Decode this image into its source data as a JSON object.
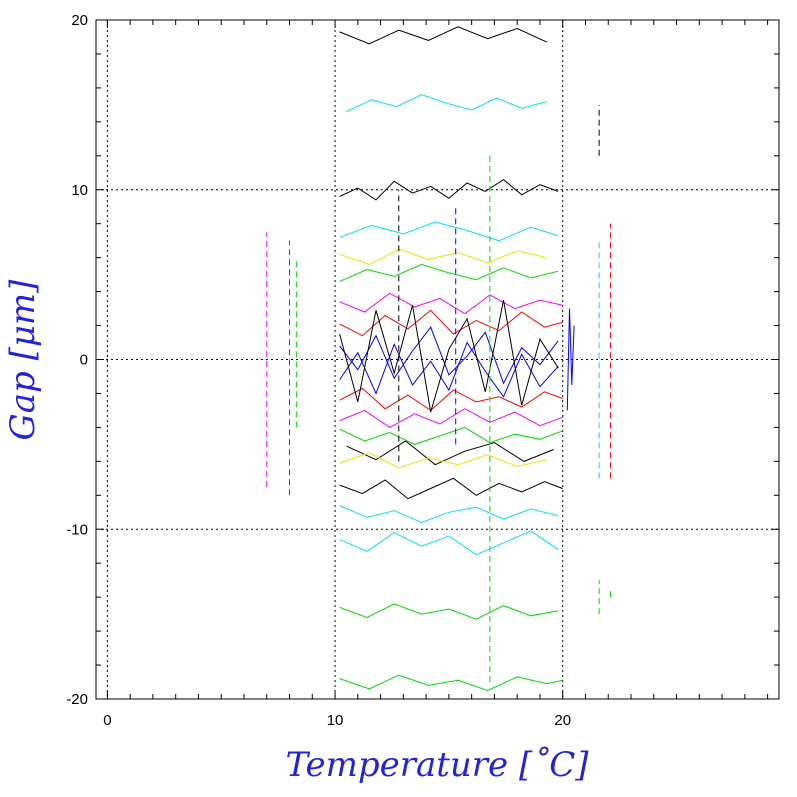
{
  "chart_data": {
    "type": "line",
    "title": "",
    "xlabel": "Temperature [˚C]",
    "ylabel": "Gap [μm]",
    "xlim": [
      -0.5,
      29.5
    ],
    "ylim": [
      -20,
      20
    ],
    "xticks": [
      0,
      10,
      20
    ],
    "yticks": [
      20,
      10,
      0,
      -10,
      -20
    ],
    "grid": "dotted",
    "vertical_reference_lines": [
      0,
      10,
      20
    ],
    "horizontal_reference_lines": [
      10,
      0,
      -10
    ],
    "palette": [
      "#000000",
      "#ff0000",
      "#00dd00",
      "#0000ff",
      "#00e5e5",
      "#ff00ff",
      "#e8e800",
      "#00b000"
    ],
    "series": [
      {
        "color": "#000000",
        "x": [
          10.2,
          11.0,
          11.8,
          12.6,
          13.4,
          14.2,
          15.0,
          15.8,
          16.6,
          17.4,
          18.2,
          19.0,
          19.8
        ],
        "y": [
          9.6,
          10.1,
          9.4,
          10.5,
          9.8,
          10.2,
          9.5,
          10.4,
          9.9,
          10.6,
          9.7,
          10.3,
          9.9
        ]
      },
      {
        "color": "#000000",
        "x": [
          10.2,
          11.5,
          12.8,
          14.1,
          15.4,
          16.7,
          18.0,
          19.3
        ],
        "y": [
          19.3,
          18.6,
          19.4,
          18.8,
          19.6,
          18.9,
          19.5,
          18.7
        ]
      },
      {
        "color": "#000000",
        "x": [
          10.2,
          11.2,
          12.2,
          13.2,
          14.2,
          15.2,
          16.2,
          17.2,
          18.2,
          19.2,
          20.0
        ],
        "y": [
          -7.4,
          -7.9,
          -7.1,
          -8.2,
          -7.6,
          -7.0,
          -8.0,
          -7.3,
          -7.8,
          -7.2,
          -7.6
        ]
      },
      {
        "color": "#000000",
        "x": [
          10.5,
          11.8,
          13.1,
          14.4,
          15.7,
          17.0,
          18.3,
          19.6
        ],
        "y": [
          -5.1,
          -5.9,
          -4.8,
          -6.2,
          -5.4,
          -4.9,
          -6.0,
          -5.3
        ]
      },
      {
        "color": "#00e5e5",
        "x": [
          10.5,
          11.6,
          12.7,
          13.8,
          14.9,
          16.0,
          17.1,
          18.2,
          19.3
        ],
        "y": [
          14.6,
          15.3,
          14.9,
          15.6,
          15.1,
          14.7,
          15.4,
          14.8,
          15.2
        ]
      },
      {
        "color": "#00e5e5",
        "x": [
          10.2,
          11.4,
          12.6,
          13.8,
          15.0,
          16.2,
          17.4,
          18.6,
          19.8
        ],
        "y": [
          -10.6,
          -11.3,
          -10.2,
          -11.0,
          -10.4,
          -11.5,
          -10.8,
          -10.1,
          -11.2
        ]
      },
      {
        "color": "#00e5e5",
        "x": [
          10.2,
          11.6,
          13.0,
          14.4,
          15.8,
          17.2,
          18.6,
          19.8
        ],
        "y": [
          7.2,
          7.9,
          7.4,
          8.1,
          7.6,
          7.0,
          7.8,
          7.3
        ]
      },
      {
        "color": "#00dd00",
        "x": [
          10.2,
          11.4,
          12.6,
          13.8,
          15.0,
          16.2,
          17.4,
          18.6,
          19.8
        ],
        "y": [
          -14.6,
          -15.2,
          -14.4,
          -15.0,
          -14.7,
          -15.3,
          -14.5,
          -15.1,
          -14.8
        ]
      },
      {
        "color": "#00dd00",
        "x": [
          10.2,
          11.5,
          12.8,
          14.1,
          15.4,
          16.7,
          18.0,
          19.3,
          20.0
        ],
        "y": [
          -18.8,
          -19.4,
          -18.6,
          -19.2,
          -18.9,
          -19.5,
          -18.7,
          -19.1,
          -18.9
        ]
      },
      {
        "color": "#00dd00",
        "x": [
          10.2,
          11.4,
          12.6,
          13.8,
          15.0,
          16.2,
          17.4,
          18.6,
          19.8
        ],
        "y": [
          4.6,
          5.3,
          4.9,
          5.6,
          5.1,
          4.7,
          5.4,
          4.8,
          5.2
        ]
      },
      {
        "color": "#00dd00",
        "x": [
          10.2,
          11.3,
          12.4,
          13.5,
          14.6,
          15.7,
          16.8,
          17.9,
          19.0,
          20.0
        ],
        "y": [
          -4.1,
          -4.8,
          -4.3,
          -5.0,
          -4.5,
          -4.0,
          -4.9,
          -4.4,
          -4.7,
          -4.2
        ]
      },
      {
        "color": "#ff0000",
        "x": [
          10.2,
          11.2,
          12.2,
          13.2,
          14.2,
          15.2,
          16.2,
          17.2,
          18.2,
          19.2,
          20.0
        ],
        "y": [
          2.1,
          1.4,
          2.6,
          1.8,
          2.9,
          1.5,
          2.3,
          1.7,
          2.8,
          1.9,
          2.2
        ]
      },
      {
        "color": "#ff0000",
        "x": [
          10.2,
          11.2,
          12.2,
          13.2,
          14.2,
          15.2,
          16.2,
          17.2,
          18.2,
          19.2,
          20.0
        ],
        "y": [
          -2.4,
          -1.7,
          -2.9,
          -2.1,
          -3.0,
          -1.8,
          -2.5,
          -2.2,
          -2.8,
          -1.9,
          -2.3
        ]
      },
      {
        "color": "#0000ff",
        "x": [
          10.2,
          11.0,
          11.8,
          12.6,
          13.4,
          14.2,
          15.0,
          15.8,
          16.6,
          17.4,
          18.2,
          19.0,
          19.8
        ],
        "y": [
          0.8,
          -0.6,
          1.4,
          -1.1,
          0.5,
          1.9,
          -0.9,
          0.2,
          1.6,
          -1.4,
          0.7,
          -0.3,
          1.1
        ]
      },
      {
        "color": "#0000ff",
        "x": [
          10.2,
          11.0,
          11.8,
          12.6,
          13.4,
          14.2,
          15.0,
          15.8,
          16.6,
          17.4,
          18.2,
          19.0,
          19.8
        ],
        "y": [
          -1.2,
          0.4,
          -2.0,
          0.9,
          -1.5,
          -0.1,
          -1.8,
          1.0,
          -0.7,
          -2.2,
          0.3,
          -1.6,
          -0.4
        ]
      },
      {
        "color": "#ff00ff",
        "x": [
          10.2,
          11.3,
          12.4,
          13.5,
          14.6,
          15.7,
          16.8,
          17.9,
          19.0,
          20.0
        ],
        "y": [
          3.4,
          2.8,
          3.9,
          3.1,
          3.6,
          2.7,
          3.8,
          3.0,
          3.5,
          3.2
        ]
      },
      {
        "color": "#ff00ff",
        "x": [
          10.2,
          11.3,
          12.4,
          13.5,
          14.6,
          15.7,
          16.8,
          17.9,
          19.0,
          20.0
        ],
        "y": [
          -3.6,
          -3.0,
          -4.0,
          -3.2,
          -3.8,
          -2.9,
          -3.7,
          -3.1,
          -3.9,
          -3.4
        ]
      },
      {
        "color": "#e8e800",
        "x": [
          10.2,
          11.5,
          12.8,
          14.1,
          15.4,
          16.7,
          18.0,
          19.3
        ],
        "y": [
          6.2,
          5.6,
          6.5,
          5.9,
          6.3,
          5.7,
          6.4,
          6.0
        ]
      },
      {
        "color": "#e8e800",
        "x": [
          10.2,
          11.5,
          12.8,
          14.1,
          15.4,
          16.7,
          18.0,
          19.3
        ],
        "y": [
          -6.1,
          -5.5,
          -6.4,
          -5.8,
          -6.2,
          -5.6,
          -6.3,
          -5.9
        ]
      },
      {
        "color": "#000000",
        "x": [
          10.2,
          11.0,
          11.8,
          12.6,
          13.4,
          14.2,
          15.0,
          15.8,
          16.6,
          17.4,
          18.2,
          19.0,
          19.8
        ],
        "y": [
          1.5,
          -2.5,
          2.9,
          -0.8,
          3.2,
          -3.1,
          0.6,
          2.4,
          -1.9,
          3.5,
          -2.7,
          1.2,
          -0.5
        ]
      },
      {
        "color": "#00e5e5",
        "x": [
          10.2,
          11.4,
          12.6,
          13.8,
          15.0,
          16.2,
          17.4,
          18.6,
          19.8
        ],
        "y": [
          -8.6,
          -9.3,
          -8.9,
          -9.6,
          -9.0,
          -8.7,
          -9.4,
          -8.8,
          -9.2
        ]
      },
      {
        "color": "#0000ff",
        "x": [
          20.2,
          20.3,
          20.4,
          20.5
        ],
        "y": [
          -3.0,
          3.0,
          -1.5,
          2.0
        ]
      }
    ],
    "vertical_streaks": [
      {
        "x": 7.0,
        "y": [
          -7.5,
          7.5
        ],
        "color": "#ff00ff"
      },
      {
        "x": 8.0,
        "y": [
          -8.0,
          7.0
        ],
        "color": "#ff0000"
      },
      {
        "x": 8.3,
        "y": [
          -4.0,
          6.0
        ],
        "color": "#00dd00"
      },
      {
        "x": 21.6,
        "y": [
          -7.0,
          7.0
        ],
        "color": "#00e5e5"
      },
      {
        "x": 22.1,
        "y": [
          -7.0,
          8.0
        ],
        "color": "#ff0000"
      },
      {
        "x": 21.6,
        "y": [
          12.0,
          15.0
        ],
        "color": "#000000"
      },
      {
        "x": 21.6,
        "y": [
          -15.0,
          -13.0
        ],
        "color": "#00dd00"
      },
      {
        "x": 22.1,
        "y": [
          -14.0,
          -13.5
        ],
        "color": "#00dd00"
      },
      {
        "x": 16.8,
        "y": [
          -19.0,
          12.0
        ],
        "color": "#00dd00"
      },
      {
        "x": 12.8,
        "y": [
          -6.0,
          10.0
        ],
        "color": "#000000"
      },
      {
        "x": 15.3,
        "y": [
          -5.0,
          9.0
        ],
        "color": "#0000ff"
      }
    ]
  }
}
